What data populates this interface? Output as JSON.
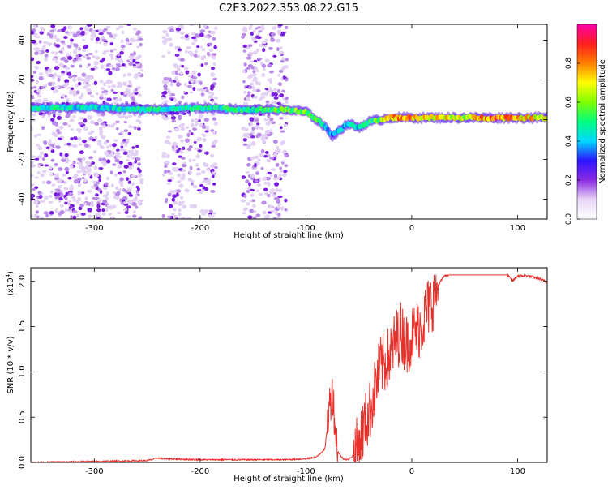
{
  "title": "C2E3.2022.353.08.22.G15",
  "chart_data": [
    {
      "type": "heatmap",
      "xlabel": "Height of straight line (km)",
      "ylabel": "Frequency (Hz)",
      "xlim": [
        -360,
        128
      ],
      "ylim": [
        -50,
        48
      ],
      "x_ticks": [
        -300,
        -200,
        -100,
        0,
        100
      ],
      "y_ticks": [
        -40,
        -20,
        0,
        20,
        40
      ],
      "colorbar": {
        "label": "Normalized spectral amplitude",
        "range": [
          0,
          1
        ],
        "ticks": [
          "0.0",
          "0.2",
          "0.4",
          "0.6",
          "0.8"
        ],
        "tick_values": [
          0.0,
          0.2,
          0.4,
          0.6,
          0.8
        ],
        "colormap": [
          "#ffffff",
          "#e9d6f7",
          "#8a2be2",
          "#2d14ff",
          "#00d8ff",
          "#00ff7f",
          "#7fff00",
          "#ffff00",
          "#ff7f00",
          "#ff1e1e",
          "#ff00a8"
        ]
      },
      "ridge": {
        "x": [
          -350,
          -300,
          -250,
          -200,
          -150,
          -120,
          -100,
          -85,
          -75,
          -60,
          -50,
          -40,
          -30,
          -20,
          0,
          20,
          50,
          80,
          100,
          128
        ],
        "frequency": [
          6,
          6,
          5,
          6,
          5,
          5,
          4,
          -2,
          -8,
          -2,
          -4,
          -1,
          0,
          1,
          1,
          1,
          1,
          1,
          1,
          1
        ],
        "amplitude": [
          0.5,
          0.45,
          0.5,
          0.5,
          0.5,
          0.6,
          0.65,
          0.5,
          0.4,
          0.45,
          0.45,
          0.55,
          0.65,
          0.8,
          0.85,
          0.75,
          0.7,
          0.9,
          0.8,
          0.75
        ]
      }
    },
    {
      "type": "line",
      "xlabel": "Height of straight line (km)",
      "ylabel": "SNR (10 * v/v)",
      "y_multiplier": "(x10",
      "y_multiplier_exp": "4",
      "y_multiplier_close": ")",
      "xlim": [
        -360,
        128
      ],
      "ylim": [
        0,
        2.15
      ],
      "x_ticks": [
        -300,
        -200,
        -100,
        0,
        100
      ],
      "y_ticks": [
        "0.0",
        "0.5",
        "1.0",
        "1.5",
        "2.0"
      ],
      "y_tick_values": [
        0.0,
        0.5,
        1.0,
        1.5,
        2.0
      ],
      "line_color": "#e8302a",
      "series": [
        {
          "x": [
            -360,
            -300,
            -250,
            -240,
            -235,
            -200,
            -150,
            -120,
            -100,
            -90,
            -82,
            -78,
            -75,
            -72,
            -70,
            -65,
            -60,
            -55,
            -50,
            -45,
            -40,
            -35,
            -30,
            -25,
            -20,
            -15,
            -10,
            -5,
            0,
            5,
            10,
            15,
            20,
            25,
            30,
            40,
            50,
            60,
            70,
            80,
            90,
            95,
            100,
            110,
            120,
            128
          ],
          "y": [
            0.0,
            0.01,
            0.02,
            0.05,
            0.04,
            0.03,
            0.03,
            0.03,
            0.04,
            0.06,
            0.15,
            0.6,
            0.8,
            0.35,
            0.12,
            0.04,
            0.03,
            0.08,
            0.2,
            0.4,
            0.55,
            0.8,
            1.05,
            1.1,
            1.2,
            1.35,
            1.45,
            1.3,
            1.4,
            1.45,
            1.55,
            1.7,
            1.8,
            1.95,
            2.05,
            2.1,
            2.1,
            2.1,
            2.1,
            2.09,
            2.08,
            2.0,
            2.06,
            2.06,
            2.03,
            1.99
          ]
        }
      ]
    }
  ]
}
